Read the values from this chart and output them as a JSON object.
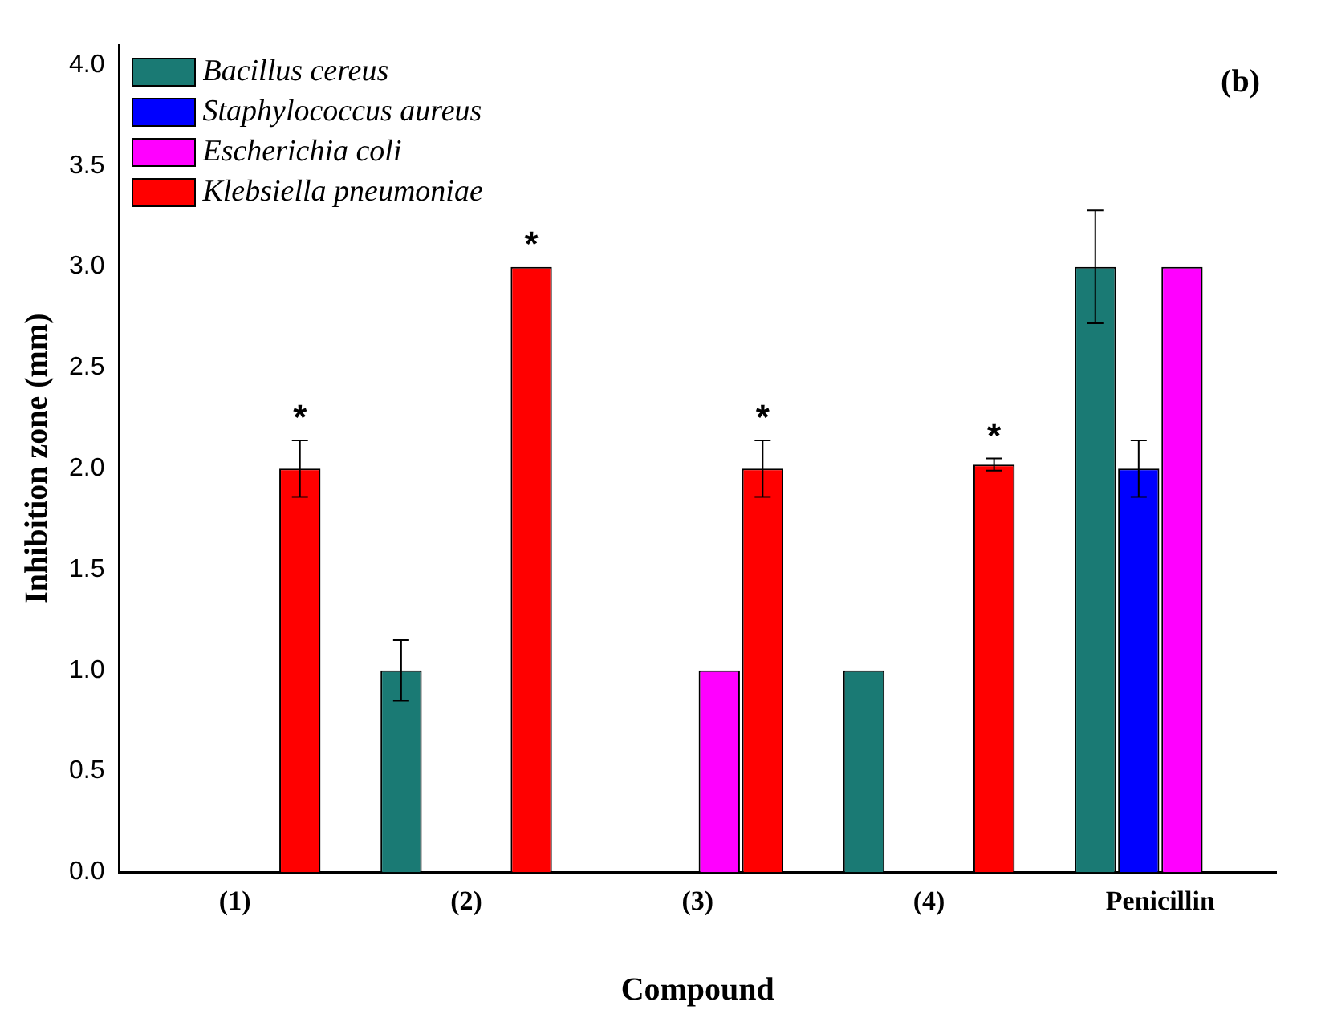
{
  "chart_data": {
    "type": "bar",
    "xlabel": "Compound",
    "ylabel": "Inhibition zone (mm)",
    "categories": [
      "(1)",
      "(2)",
      "(3)",
      "(4)",
      "Penicillin"
    ],
    "series": [
      {
        "name": "Bacillus cereus",
        "color": "#1a7a74",
        "values": [
          null,
          1.0,
          null,
          1.0,
          3.0
        ],
        "errors": [
          null,
          0.15,
          null,
          null,
          0.28
        ]
      },
      {
        "name": "Staphylococcus aureus",
        "color": "#0000ff",
        "values": [
          null,
          null,
          null,
          null,
          2.0
        ],
        "errors": [
          null,
          null,
          null,
          null,
          0.14
        ]
      },
      {
        "name": "Escherichia coli",
        "color": "#ff00ff",
        "values": [
          null,
          null,
          1.0,
          null,
          3.0
        ]
      },
      {
        "name": "Klebsiella pneumoniae",
        "color": "#ff0000",
        "values": [
          2.0,
          3.0,
          2.0,
          2.02,
          null
        ],
        "errors": [
          0.14,
          null,
          0.14,
          0.03,
          null
        ]
      }
    ],
    "ylim": [
      0,
      4.1
    ],
    "yticks": [
      {
        "value": 0,
        "label": "0.0"
      },
      {
        "value": 0.5,
        "label": "0.5"
      },
      {
        "value": 1,
        "label": "1.0"
      },
      {
        "value": 1.5,
        "label": "1.5"
      },
      {
        "value": 2,
        "label": "2.0"
      },
      {
        "value": 2.5,
        "label": "2.5"
      },
      {
        "value": 3,
        "label": "3.0"
      },
      {
        "value": 3.5,
        "label": "3.5"
      },
      {
        "value": 4,
        "label": "4.0"
      }
    ],
    "annotations": [
      "*",
      "*",
      "*",
      "*",
      "(b)"
    ],
    "legend": "top left",
    "grid": false
  }
}
